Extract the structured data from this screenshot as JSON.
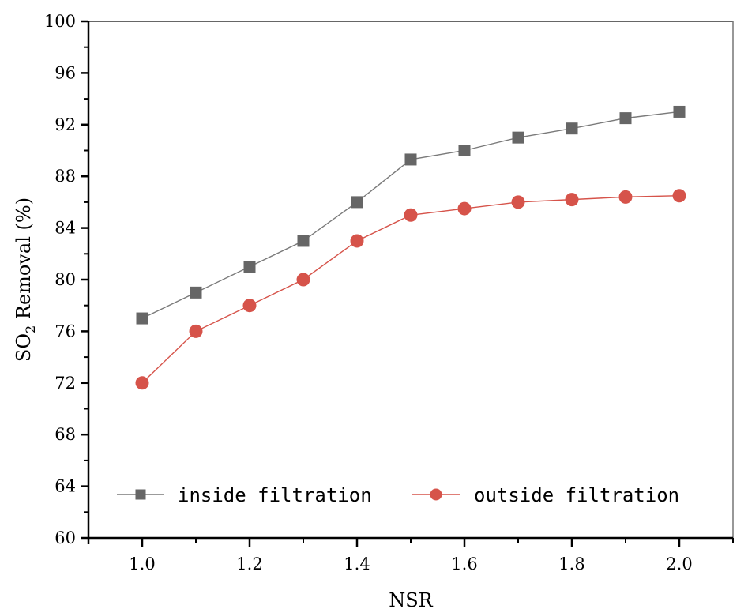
{
  "chart_data": {
    "type": "line",
    "title": "",
    "xlabel": "NSR",
    "ylabel_main": "SO",
    "ylabel_sub": "2",
    "ylabel_rest": " Removal (%)",
    "ylabel": "SO2 Removal (%)",
    "xlim": [
      0.9,
      2.1
    ],
    "ylim": [
      60,
      100
    ],
    "x_ticks": [
      1.0,
      1.2,
      1.4,
      1.6,
      1.8,
      2.0
    ],
    "x_tick_labels": [
      "1.0",
      "1.2",
      "1.4",
      "1.6",
      "1.8",
      "2.0"
    ],
    "x_minor_ticks": [
      0.9,
      1.1,
      1.3,
      1.5,
      1.7,
      1.9,
      2.1
    ],
    "y_ticks": [
      60,
      64,
      68,
      72,
      76,
      80,
      84,
      88,
      92,
      96,
      100
    ],
    "y_tick_labels": [
      "60",
      "64",
      "68",
      "72",
      "76",
      "80",
      "84",
      "88",
      "92",
      "96",
      "100"
    ],
    "grid": false,
    "legend_position": "lower, inside plot, horizontal",
    "x": [
      1.0,
      1.1,
      1.2,
      1.3,
      1.4,
      1.5,
      1.6,
      1.7,
      1.8,
      1.9,
      2.0
    ],
    "series": [
      {
        "name": "inside filtration",
        "marker": "square",
        "color": "#666666",
        "line_color": "#7a7a7a",
        "values": [
          77.0,
          79.0,
          81.0,
          83.0,
          86.0,
          89.3,
          90.0,
          91.0,
          91.7,
          92.5,
          93.0
        ]
      },
      {
        "name": "outside filtration",
        "marker": "circle",
        "color": "#d6534a",
        "line_color": "#d6534a",
        "values": [
          72.0,
          76.0,
          78.0,
          80.0,
          83.0,
          85.0,
          85.5,
          86.0,
          86.2,
          86.4,
          86.5
        ]
      }
    ]
  }
}
